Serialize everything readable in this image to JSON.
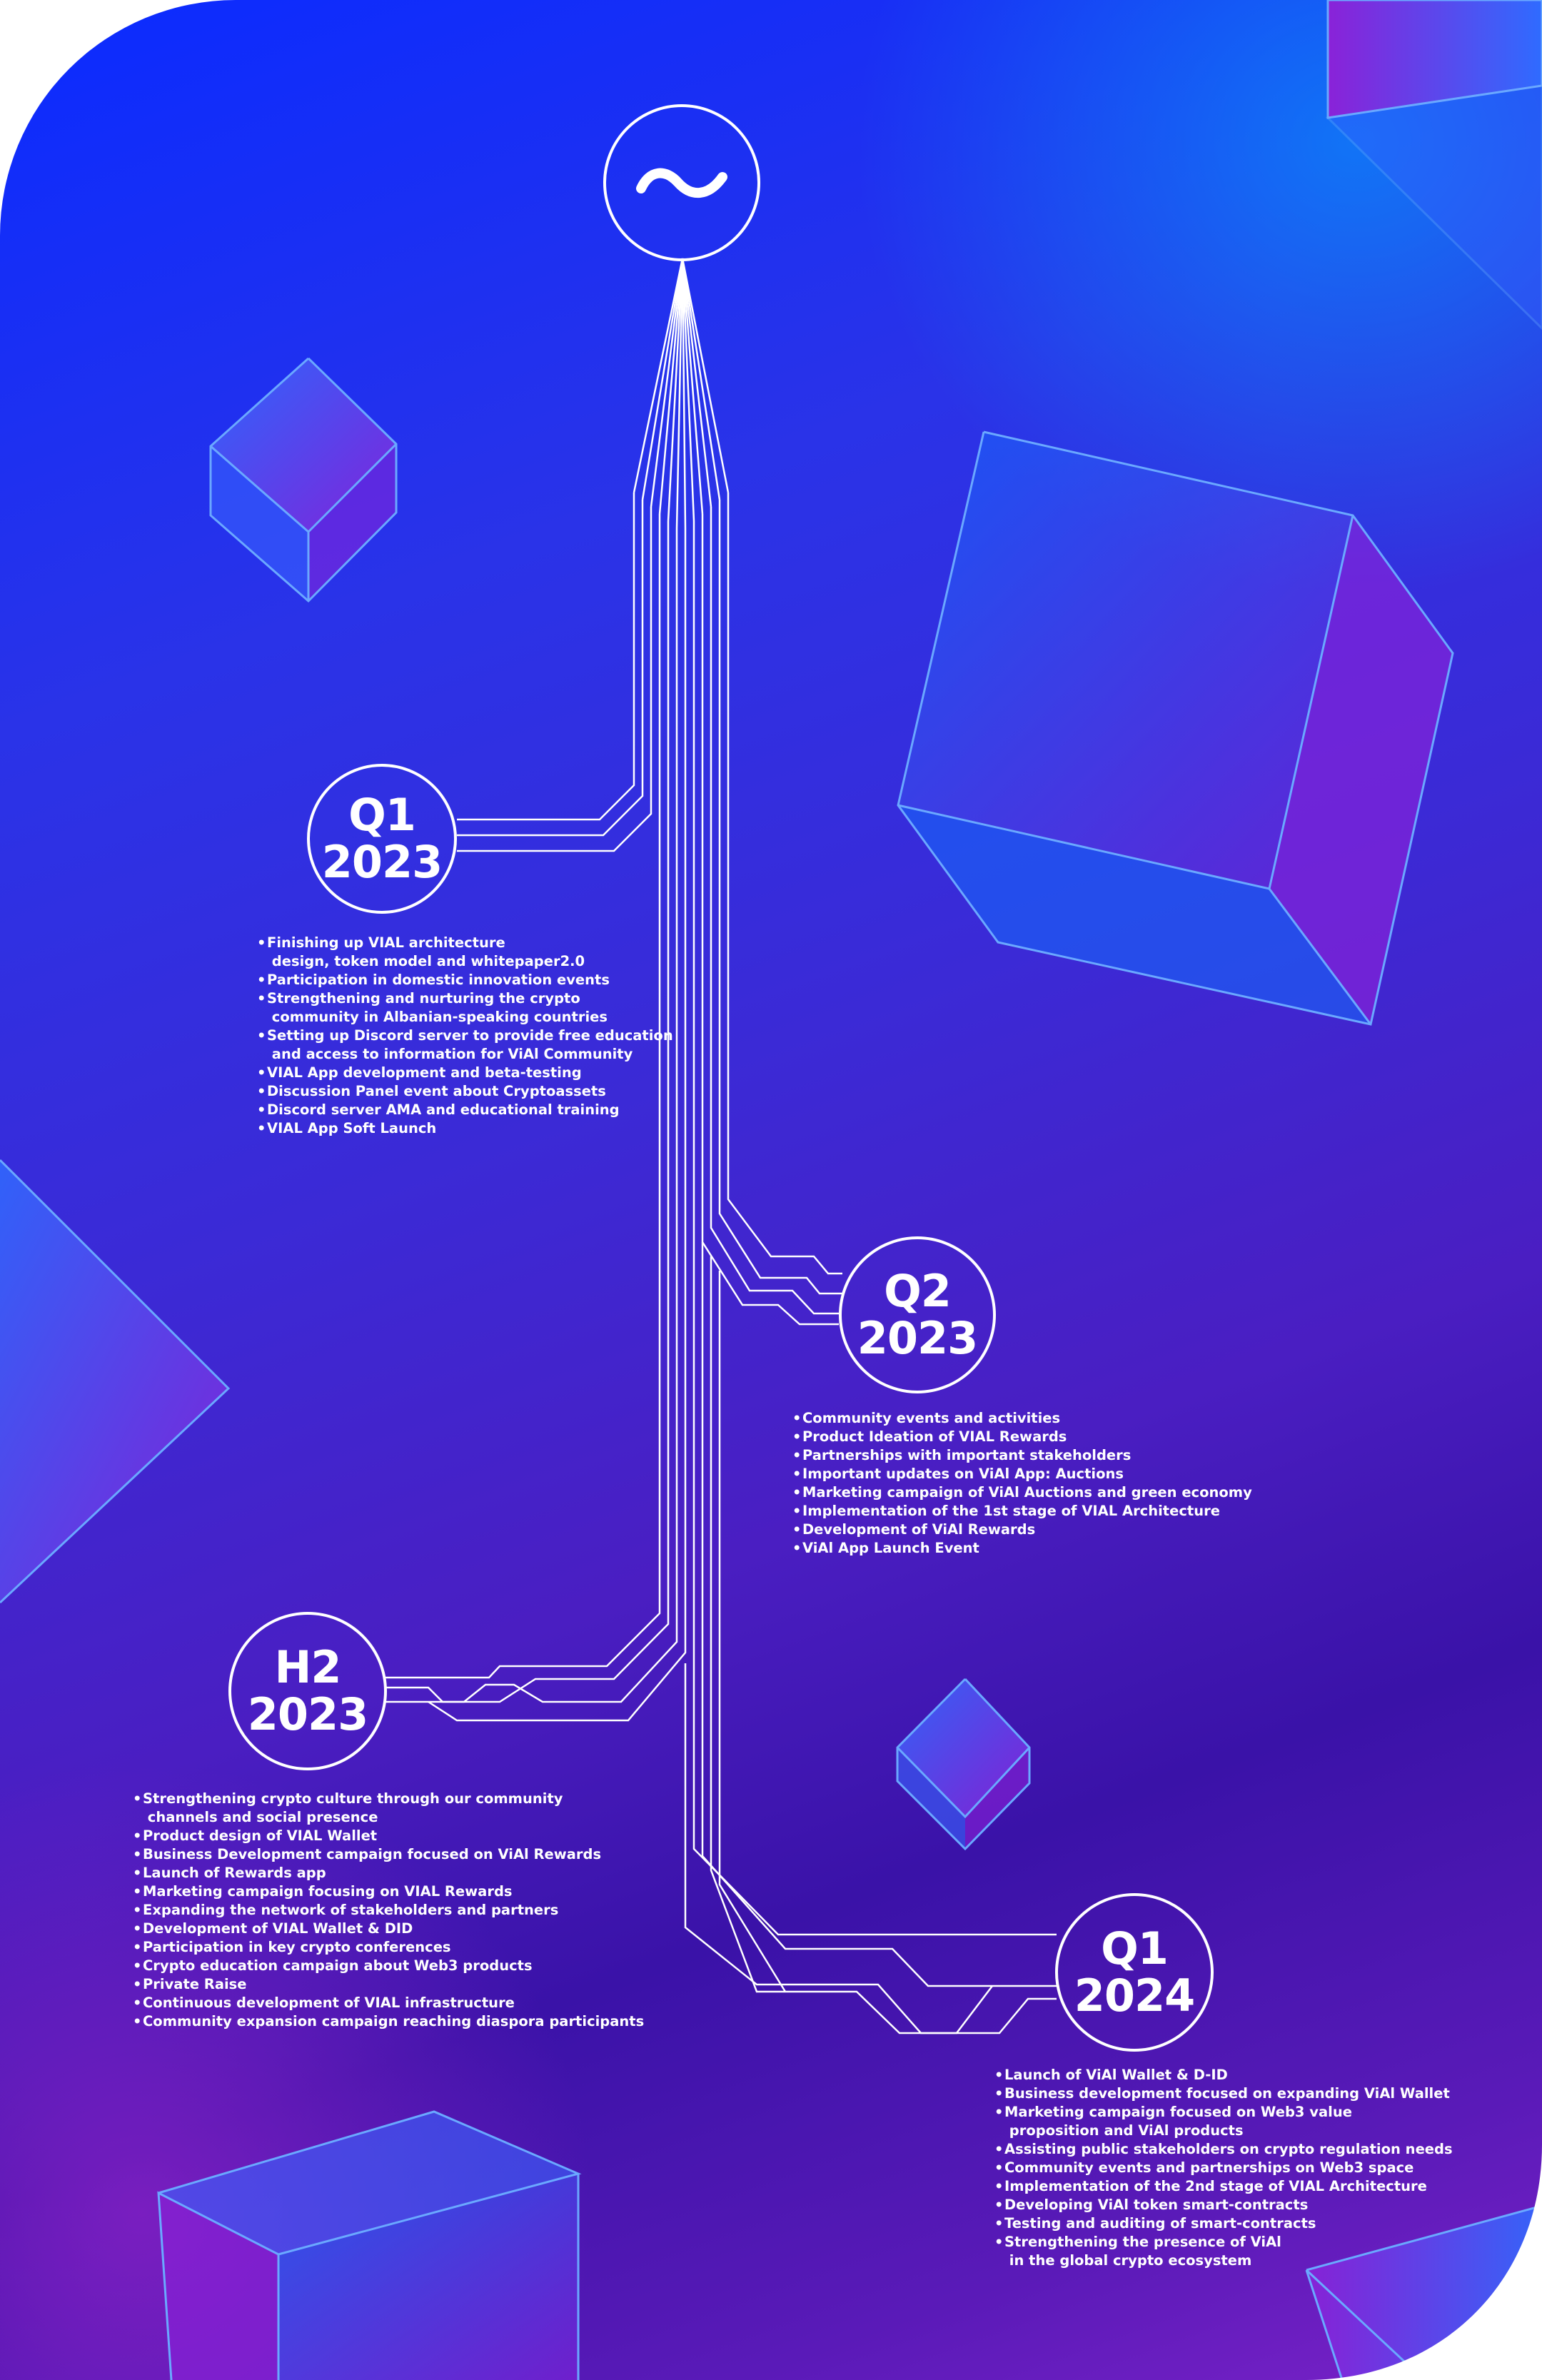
{
  "milestones": [
    {
      "line1": "Q1",
      "line2": "2023",
      "items": [
        "Finishing up VIAL architecture\n design, token model and whitepaper2.0",
        "Participation in domestic innovation events",
        "Strengthening and nurturing the crypto\n community in Albanian-speaking countries",
        "Setting up Discord server to provide free education\n and access to information for ViAl Community",
        "VIAL App development and beta-testing",
        "Discussion Panel event about Cryptoassets",
        "Discord server AMA and educational training",
        "VIAL App Soft Launch"
      ]
    },
    {
      "line1": "Q2",
      "line2": "2023",
      "items": [
        "Community events and activities",
        "Product Ideation of VIAL Rewards",
        "Partnerships with important stakeholders",
        "Important updates on ViAl App: Auctions",
        "Marketing campaign of ViAl Auctions and green economy",
        "Implementation of the 1st stage of VIAL Architecture",
        "Development of ViAl Rewards",
        "ViAl App Launch Event"
      ]
    },
    {
      "line1": "H2",
      "line2": "2023",
      "items": [
        "Strengthening crypto culture through our community\n channels and social presence",
        "Product design of VIAL Wallet",
        "Business Development campaign focused on ViAl Rewards",
        "Launch of Rewards app",
        "Marketing campaign focusing on VIAL Rewards",
        "Expanding the network of stakeholders and partners",
        "Development of VIAL Wallet & DID",
        "Participation in key crypto conferences",
        "Crypto education campaign about Web3 products",
        "Private Raise",
        "Continuous development of VIAL infrastructure",
        "Community expansion campaign reaching diaspora participants"
      ]
    },
    {
      "line1": "Q1",
      "line2": "2024",
      "items": [
        "Launch of ViAl Wallet & D-ID",
        "Business development focused on expanding ViAl Wallet",
        "Marketing campaign focused on Web3 value\n proposition and ViAl products",
        "Assisting public stakeholders on crypto regulation needs",
        "Community events and partnerships on Web3 space",
        "Implementation of the 2nd stage of VIAL Architecture",
        "Developing ViAl token smart-contracts",
        "Testing and auditing of smart-contracts",
        "Strengthening the presence of ViAl\n in the global crypto ecosystem"
      ]
    }
  ],
  "icons": {
    "logo": "tilde-wave-logo-icon",
    "cube": "wireframe-cube-icon"
  },
  "colors": {
    "top_left": "#0a2bff",
    "top_right": "#00aaff",
    "middle": "#3b2ad6",
    "bottom": "#3a12a8",
    "bottom_left": "#aa28d2",
    "line": "#ffffff",
    "cube_edge": "#5aa6ff"
  }
}
